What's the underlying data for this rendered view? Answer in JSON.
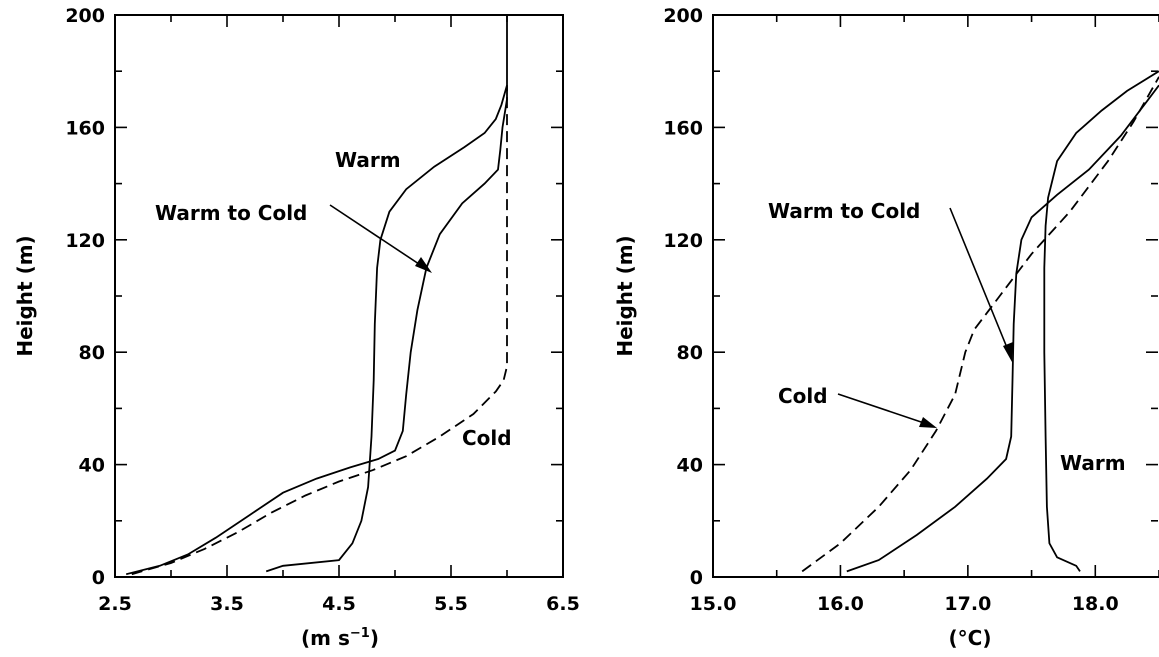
{
  "chart_data": [
    {
      "type": "line",
      "xlabel": "(m s",
      "xlabel_sup": "−1",
      "xlabel_close": ")",
      "ylabel": "Height (m)",
      "xlim": [
        2.5,
        6.5
      ],
      "ylim": [
        0,
        200
      ],
      "x_ticks": [
        "2.5",
        "3.5",
        "4.5",
        "5.5",
        "6.5"
      ],
      "y_ticks": [
        "0",
        "40",
        "80",
        "120",
        "160",
        "200"
      ],
      "series": [
        {
          "name": "Warm",
          "dashed": false,
          "x": [
            3.85,
            4.0,
            4.5,
            4.62,
            4.7,
            4.76,
            4.79,
            4.81,
            4.82,
            4.84,
            4.87,
            4.95,
            5.1,
            5.35,
            5.62,
            5.8,
            5.9,
            5.95,
            6.0,
            6.0
          ],
          "y": [
            2,
            4,
            6,
            12,
            20,
            32,
            50,
            70,
            90,
            110,
            120,
            130,
            138,
            146,
            153,
            158,
            163,
            168,
            175,
            200
          ]
        },
        {
          "name": "Warm to Cold",
          "dashed": false,
          "x": [
            2.6,
            2.9,
            3.15,
            3.4,
            3.7,
            4.0,
            4.3,
            4.6,
            4.85,
            5.0,
            5.07,
            5.1,
            5.14,
            5.2,
            5.28,
            5.4,
            5.6,
            5.8,
            5.92,
            5.94,
            5.96,
            6.0,
            6.0
          ],
          "y": [
            1,
            4,
            8,
            14,
            22,
            30,
            35,
            39,
            42,
            45,
            52,
            65,
            80,
            95,
            110,
            122,
            133,
            140,
            145,
            152,
            160,
            170,
            175
          ]
        },
        {
          "name": "Cold",
          "dashed": true,
          "x": [
            2.65,
            3.0,
            3.3,
            3.6,
            3.9,
            4.2,
            4.5,
            4.8,
            5.1,
            5.4,
            5.7,
            5.9,
            5.97,
            6.0,
            6.0,
            6.0
          ],
          "y": [
            1,
            5,
            10,
            16,
            23,
            29,
            34,
            38,
            43,
            50,
            58,
            66,
            70,
            75,
            120,
            175
          ]
        }
      ],
      "annotations": [
        {
          "text": "Warm"
        },
        {
          "text": "Warm to Cold"
        },
        {
          "text": "Cold"
        }
      ]
    },
    {
      "type": "line",
      "xlabel": "(°C)",
      "ylabel": "Height (m)",
      "xlim": [
        15.0,
        18.5
      ],
      "ylim": [
        0,
        200
      ],
      "x_ticks": [
        "15.0",
        "16.0",
        "17.0",
        "18.0"
      ],
      "y_ticks": [
        "0",
        "40",
        "80",
        "120",
        "160",
        "200"
      ],
      "series": [
        {
          "name": "Warm",
          "dashed": false,
          "x": [
            17.88,
            17.85,
            17.7,
            17.64,
            17.62,
            17.61,
            17.6,
            17.6,
            17.61,
            17.63,
            17.7,
            17.85,
            18.05,
            18.25,
            18.5
          ],
          "y": [
            2,
            4,
            7,
            12,
            25,
            50,
            80,
            110,
            125,
            135,
            148,
            158,
            166,
            173,
            180
          ]
        },
        {
          "name": "Warm to Cold",
          "dashed": false,
          "x": [
            16.05,
            16.3,
            16.6,
            16.9,
            17.15,
            17.3,
            17.34,
            17.35,
            17.36,
            17.38,
            17.42,
            17.5,
            17.7,
            17.95,
            18.2,
            18.5
          ],
          "y": [
            2,
            6,
            15,
            25,
            35,
            42,
            50,
            70,
            90,
            108,
            120,
            128,
            136,
            145,
            157,
            175
          ]
        },
        {
          "name": "Cold",
          "dashed": true,
          "x": [
            15.7,
            16.0,
            16.3,
            16.55,
            16.75,
            16.9,
            16.98,
            17.05,
            17.25,
            17.5,
            17.8,
            18.1,
            18.3,
            18.5
          ],
          "y": [
            2,
            12,
            25,
            38,
            52,
            65,
            80,
            88,
            100,
            115,
            130,
            148,
            162,
            178
          ]
        }
      ],
      "annotations": [
        {
          "text": "Warm to Cold"
        },
        {
          "text": "Cold"
        },
        {
          "text": "Warm"
        }
      ]
    }
  ]
}
